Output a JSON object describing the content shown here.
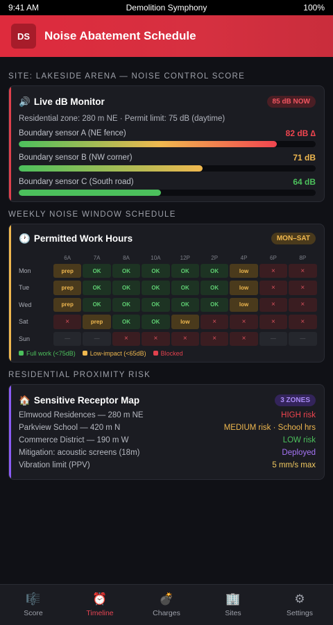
{
  "status": {
    "time": "9:41 AM",
    "app": "Demolition Symphony",
    "battery": "100%"
  },
  "header": {
    "logo": "DS",
    "title": "Noise Abatement Schedule"
  },
  "sec1": {
    "label": "SITE: LAKESIDE ARENA — NOISE CONTROL SCORE"
  },
  "monitor": {
    "icon": "🔊",
    "title": "Live dB Monitor",
    "badge": "85 dB NOW",
    "subtitle": "Residential zone: 280 m NE · Permit limit: 75 dB (daytime)",
    "sensors": [
      {
        "label": "Boundary sensor A (NE fence)",
        "value": "82 dB ∆",
        "fill": 0.87,
        "color": "#f0454f"
      },
      {
        "label": "Boundary sensor B (NW corner)",
        "value": "71 dB",
        "fill": 0.62,
        "color": "#f0b84f"
      },
      {
        "label": "Boundary sensor C (South road)",
        "value": "64 dB",
        "fill": 0.48,
        "color": "#4cc05c"
      }
    ]
  },
  "sec2": {
    "label": "WEEKLY NOISE WINDOW SCHEDULE"
  },
  "schedule": {
    "icon": "🕐",
    "title": "Permitted Work Hours",
    "badge": "MON–SAT",
    "hours": [
      "6A",
      "7A",
      "8A",
      "10A",
      "12P",
      "2P",
      "4P",
      "6P",
      "8P"
    ],
    "days": [
      {
        "day": "Mon",
        "cells": [
          "prep",
          "OK",
          "OK",
          "OK",
          "OK",
          "OK",
          "low",
          "×",
          "×"
        ]
      },
      {
        "day": "Tue",
        "cells": [
          "prep",
          "OK",
          "OK",
          "OK",
          "OK",
          "OK",
          "low",
          "×",
          "×"
        ]
      },
      {
        "day": "Wed",
        "cells": [
          "prep",
          "OK",
          "OK",
          "OK",
          "OK",
          "OK",
          "low",
          "×",
          "×"
        ]
      },
      {
        "day": "Sat",
        "cells": [
          "×",
          "prep",
          "OK",
          "OK",
          "low",
          "×",
          "×",
          "×",
          "×"
        ]
      },
      {
        "day": "Sun",
        "cells": [
          "—",
          "—",
          "×",
          "×",
          "×",
          "×",
          "×",
          "—",
          "—"
        ]
      }
    ],
    "legend": [
      {
        "label": "Full work (<75dB)",
        "color": "#4cc05c"
      },
      {
        "label": "Low-impact (<65dB)",
        "color": "#f0b84f"
      },
      {
        "label": "Blocked",
        "color": "#e0414d"
      }
    ]
  },
  "sec3": {
    "label": "RESIDENTIAL PROXIMITY RISK"
  },
  "receptors": {
    "icon": "🏠",
    "title": "Sensitive Receptor Map",
    "badge": "3 ZONES",
    "rows": [
      {
        "label": "Elmwood Residences — 280 m NE",
        "value": "HIGH risk",
        "color": "#f0454f"
      },
      {
        "label": "Parkview School — 420 m N",
        "value": "MEDIUM risk · School hrs",
        "color": "#f0b84f"
      },
      {
        "label": "Commerce District — 190 m W",
        "value": "LOW risk",
        "color": "#4cc05c"
      },
      {
        "label": "Mitigation: acoustic screens (18m)",
        "value": "Deployed",
        "color": "#a574f5"
      },
      {
        "label": "Vibration limit (PPV)",
        "value": "5 mm/s max",
        "color": "#f0c860"
      }
    ]
  },
  "tabs": [
    {
      "icon": "🎼",
      "label": "Score"
    },
    {
      "icon": "⏰",
      "label": "Timeline",
      "active": true
    },
    {
      "icon": "💣",
      "label": "Charges"
    },
    {
      "icon": "🏢",
      "label": "Sites"
    },
    {
      "icon": "⚙",
      "label": "Settings"
    }
  ],
  "colors": {
    "brand": "#de2b3d",
    "accent_red": "#e0414d",
    "accent_amber": "#f0b84f",
    "accent_purple": "#8b5cf6"
  }
}
